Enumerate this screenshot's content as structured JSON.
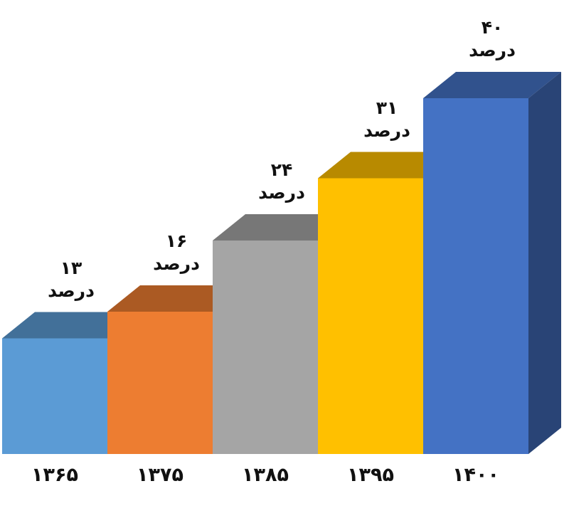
{
  "chart_data": {
    "type": "bar3d",
    "categories": [
      "۱۳۶۵",
      "۱۳۷۵",
      "۱۳۸۵",
      "۱۳۹۵",
      "۱۴۰۰"
    ],
    "values": [
      13,
      16,
      24,
      31,
      40
    ],
    "value_labels": [
      "۱۳\nدرصد",
      "۱۶\nدرصد",
      "۲۴\nدرصد",
      "۳۱\nدرصد",
      "۴۰\nدرصد"
    ],
    "colors": [
      "#5b9bd5",
      "#ed7d31",
      "#a5a5a5",
      "#ffc000",
      "#4472c4"
    ]
  }
}
